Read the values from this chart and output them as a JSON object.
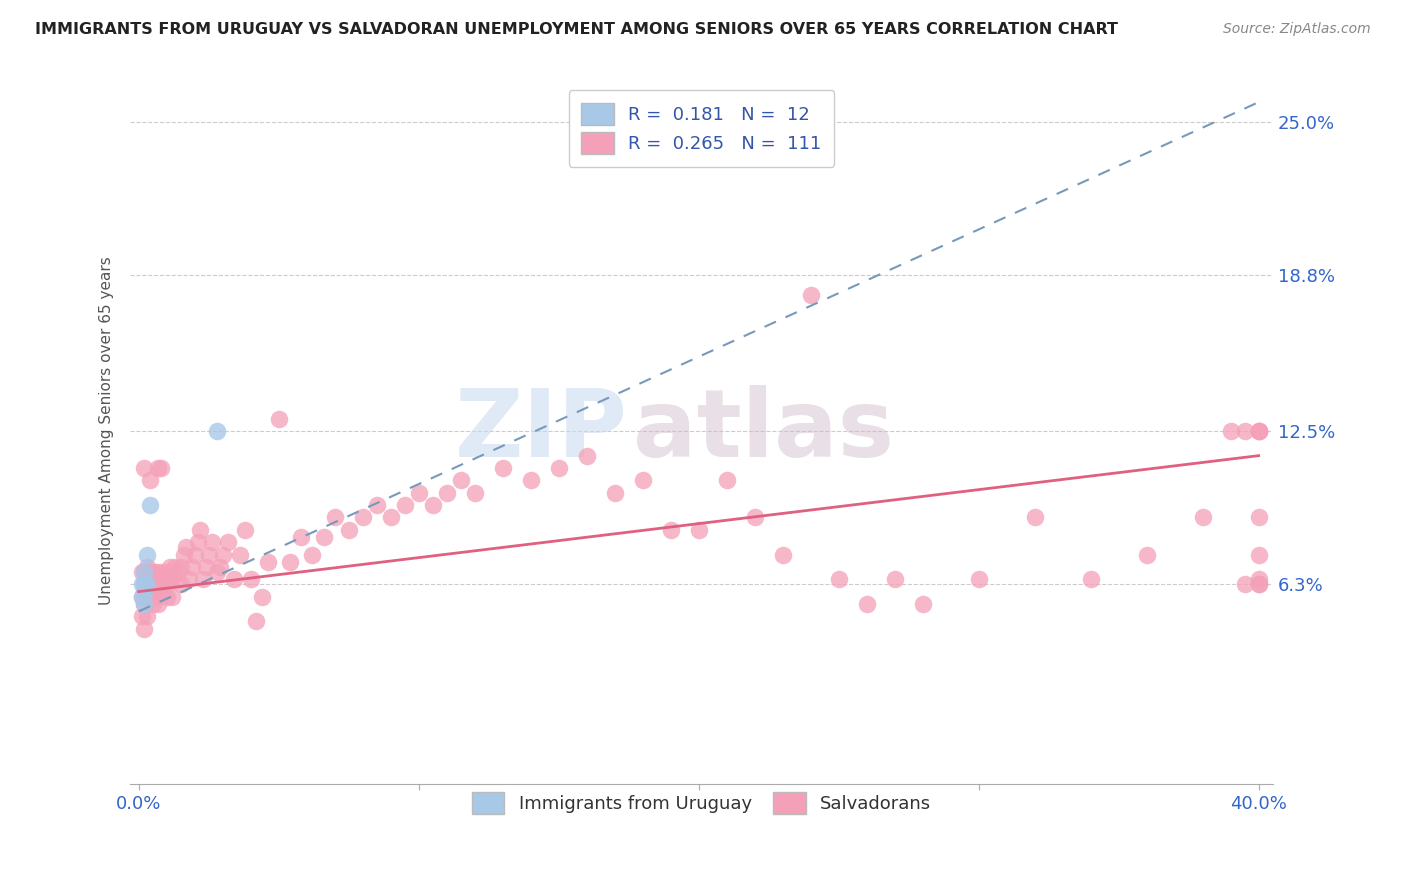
{
  "title": "IMMIGRANTS FROM URUGUAY VS SALVADORAN UNEMPLOYMENT AMONG SENIORS OVER 65 YEARS CORRELATION CHART",
  "source": "Source: ZipAtlas.com",
  "ylabel": "Unemployment Among Seniors over 65 years",
  "ytick_labels": [
    "6.3%",
    "12.5%",
    "18.8%",
    "25.0%"
  ],
  "ytick_values": [
    0.063,
    0.125,
    0.188,
    0.25
  ],
  "xlim": [
    -0.003,
    0.405
  ],
  "ylim": [
    -0.018,
    0.268
  ],
  "legend_r1": "R =  0.181",
  "legend_n1": "N =  12",
  "legend_r2": "R =  0.265",
  "legend_n2": "N =  111",
  "legend_label1": "Immigrants from Uruguay",
  "legend_label2": "Salvadorans",
  "uruguay_color": "#a8c8e8",
  "salvadoran_color": "#f4a0b8",
  "uruguay_line_color": "#7799bb",
  "salvadoran_line_color": "#e06080",
  "watermark_zip": "ZIP",
  "watermark_atlas": "atlas",
  "uruguay_line_x0": 0.0,
  "uruguay_line_y0": 0.052,
  "uruguay_line_x1": 0.4,
  "uruguay_line_y1": 0.258,
  "salvadoran_line_x0": 0.0,
  "salvadoran_line_y0": 0.06,
  "salvadoran_line_x1": 0.4,
  "salvadoran_line_y1": 0.115,
  "uruguay_x": [
    0.001,
    0.001,
    0.002,
    0.002,
    0.002,
    0.002,
    0.002,
    0.002,
    0.003,
    0.003,
    0.004,
    0.028
  ],
  "uruguay_y": [
    0.063,
    0.058,
    0.063,
    0.055,
    0.063,
    0.068,
    0.063,
    0.06,
    0.075,
    0.063,
    0.095,
    0.125
  ],
  "salvadoran_x": [
    0.001,
    0.001,
    0.001,
    0.002,
    0.002,
    0.002,
    0.002,
    0.002,
    0.003,
    0.003,
    0.003,
    0.003,
    0.004,
    0.004,
    0.004,
    0.004,
    0.005,
    0.005,
    0.005,
    0.005,
    0.006,
    0.006,
    0.006,
    0.007,
    0.007,
    0.007,
    0.008,
    0.008,
    0.008,
    0.009,
    0.009,
    0.01,
    0.01,
    0.011,
    0.011,
    0.012,
    0.012,
    0.013,
    0.014,
    0.015,
    0.015,
    0.016,
    0.017,
    0.018,
    0.019,
    0.02,
    0.021,
    0.022,
    0.023,
    0.024,
    0.025,
    0.026,
    0.028,
    0.029,
    0.03,
    0.032,
    0.034,
    0.036,
    0.038,
    0.04,
    0.042,
    0.044,
    0.046,
    0.05,
    0.054,
    0.058,
    0.062,
    0.066,
    0.07,
    0.075,
    0.08,
    0.085,
    0.09,
    0.095,
    0.1,
    0.105,
    0.11,
    0.115,
    0.12,
    0.13,
    0.14,
    0.15,
    0.16,
    0.17,
    0.18,
    0.19,
    0.2,
    0.21,
    0.22,
    0.23,
    0.24,
    0.25,
    0.26,
    0.27,
    0.28,
    0.3,
    0.32,
    0.34,
    0.36,
    0.38,
    0.39,
    0.395,
    0.395,
    0.4,
    0.4,
    0.4,
    0.4,
    0.4,
    0.4,
    0.4,
    0.4
  ],
  "salvadoran_y": [
    0.05,
    0.058,
    0.068,
    0.045,
    0.055,
    0.06,
    0.068,
    0.11,
    0.05,
    0.058,
    0.063,
    0.07,
    0.058,
    0.063,
    0.068,
    0.105,
    0.055,
    0.058,
    0.063,
    0.068,
    0.058,
    0.063,
    0.068,
    0.055,
    0.06,
    0.11,
    0.063,
    0.068,
    0.11,
    0.06,
    0.065,
    0.058,
    0.068,
    0.065,
    0.07,
    0.058,
    0.065,
    0.07,
    0.068,
    0.063,
    0.07,
    0.075,
    0.078,
    0.065,
    0.07,
    0.075,
    0.08,
    0.085,
    0.065,
    0.07,
    0.075,
    0.08,
    0.068,
    0.07,
    0.075,
    0.08,
    0.065,
    0.075,
    0.085,
    0.065,
    0.048,
    0.058,
    0.072,
    0.13,
    0.072,
    0.082,
    0.075,
    0.082,
    0.09,
    0.085,
    0.09,
    0.095,
    0.09,
    0.095,
    0.1,
    0.095,
    0.1,
    0.105,
    0.1,
    0.11,
    0.105,
    0.11,
    0.115,
    0.1,
    0.105,
    0.085,
    0.085,
    0.105,
    0.09,
    0.075,
    0.18,
    0.065,
    0.055,
    0.065,
    0.055,
    0.065,
    0.09,
    0.065,
    0.075,
    0.09,
    0.125,
    0.125,
    0.063,
    0.063,
    0.065,
    0.075,
    0.09,
    0.125,
    0.125,
    0.063,
    0.125
  ]
}
